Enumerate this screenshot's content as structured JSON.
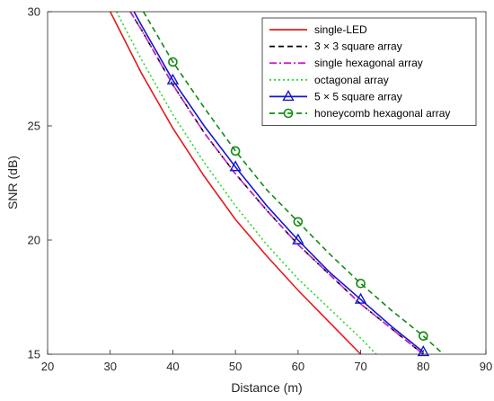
{
  "chart_data": {
    "type": "line",
    "xlabel": "Distance (m)",
    "ylabel": "SNR (dB)",
    "xlim": [
      20,
      90
    ],
    "ylim": [
      15,
      30
    ],
    "xticks": [
      20,
      30,
      40,
      50,
      60,
      70,
      80,
      90
    ],
    "yticks": [
      15,
      20,
      25,
      30
    ],
    "grid": false,
    "legend_position": "top-right",
    "series": [
      {
        "name": "single-LED",
        "color": "#e41a1c",
        "dash": "solid",
        "marker": "none",
        "x": [
          30,
          35,
          40,
          45,
          50,
          55,
          60,
          65,
          70
        ],
        "y": [
          30.0,
          27.3,
          24.9,
          22.8,
          20.9,
          19.3,
          17.8,
          16.4,
          15.0
        ]
      },
      {
        "name": "3 × 3 square array",
        "color": "#000000",
        "dash": "dashed",
        "marker": "none",
        "x": [
          33.2,
          35,
          40,
          45,
          50,
          55,
          60,
          65,
          70,
          75,
          80
        ],
        "y": [
          30.0,
          29.2,
          26.8,
          24.7,
          22.9,
          21.3,
          19.8,
          18.5,
          17.2,
          16.1,
          15.0
        ]
      },
      {
        "name": "single hexagonal array",
        "color": "#cc22cc",
        "dash": "dashdot",
        "marker": "none",
        "x": [
          33.2,
          35,
          40,
          45,
          50,
          55,
          60,
          65,
          70,
          75,
          80
        ],
        "y": [
          30.0,
          29.2,
          26.8,
          24.7,
          22.9,
          21.3,
          19.8,
          18.5,
          17.2,
          16.1,
          15.0
        ]
      },
      {
        "name": "octagonal array",
        "color": "#22dd22",
        "dash": "dotted",
        "marker": "none",
        "x": [
          31,
          35,
          40,
          45,
          50,
          55,
          60,
          65,
          70,
          72.5
        ],
        "y": [
          30.0,
          27.9,
          25.5,
          23.4,
          21.5,
          19.8,
          18.3,
          17.0,
          15.7,
          15.0
        ]
      },
      {
        "name": "5 × 5 square array",
        "color": "#1515d0",
        "dash": "solid",
        "marker": "triangle",
        "x": [
          33.8,
          35,
          40,
          45,
          50,
          55,
          60,
          65,
          70,
          75,
          80
        ],
        "y": [
          30.0,
          29.4,
          27.0,
          25.0,
          23.2,
          21.5,
          20.0,
          18.6,
          17.4,
          16.2,
          15.1
        ],
        "marker_x": [
          40,
          50,
          60,
          70,
          80
        ]
      },
      {
        "name": "honeycomb hexagonal array",
        "color": "#128a12",
        "dash": "dashed",
        "marker": "circle",
        "x": [
          35.3,
          40,
          45,
          50,
          55,
          60,
          65,
          70,
          75,
          80,
          83.2
        ],
        "y": [
          30.0,
          27.8,
          25.8,
          23.9,
          22.2,
          20.8,
          19.4,
          18.1,
          16.9,
          15.8,
          15.0
        ],
        "marker_x": [
          40,
          50,
          60,
          70,
          80
        ]
      }
    ]
  }
}
